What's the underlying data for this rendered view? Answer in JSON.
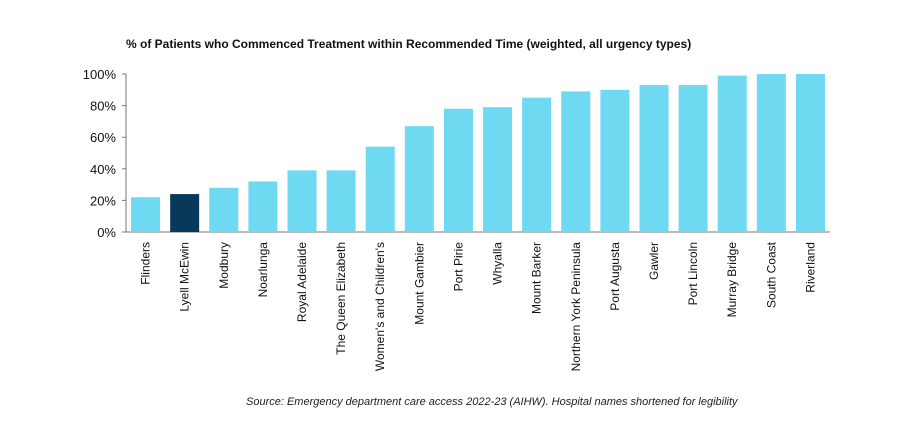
{
  "chart_data": {
    "type": "bar",
    "title": "% of Patients who Commenced Treatment within Recommended Time (weighted, all urgency types)",
    "source": "Source: Emergency department care access 2022-23 (AIHW). Hospital names shortened for legibility",
    "categories": [
      "Flinders",
      "Lyell McEwin",
      "Modbury",
      "Noarlunga",
      "Royal Adelaide",
      "The Queen Elizabeth",
      "Women's and Children's",
      "Mount Gambier",
      "Port Pirie",
      "Whyalla",
      "Mount Barker",
      "Northern York Peninsula",
      "Port Augusta",
      "Gawler",
      "Port Lincoln",
      "Murray Bridge",
      "South Coast",
      "Riverland"
    ],
    "values": [
      22,
      24,
      28,
      32,
      39,
      39,
      54,
      67,
      78,
      79,
      85,
      89,
      90,
      93,
      93,
      99,
      100,
      100
    ],
    "highlight_index": 1,
    "colors": {
      "bar": "#6fd9f2",
      "highlight": "#073a5a"
    },
    "yticks": [
      "0%",
      "20%",
      "40%",
      "60%",
      "80%",
      "100%"
    ],
    "ylim": [
      0,
      100
    ],
    "grid": false
  }
}
